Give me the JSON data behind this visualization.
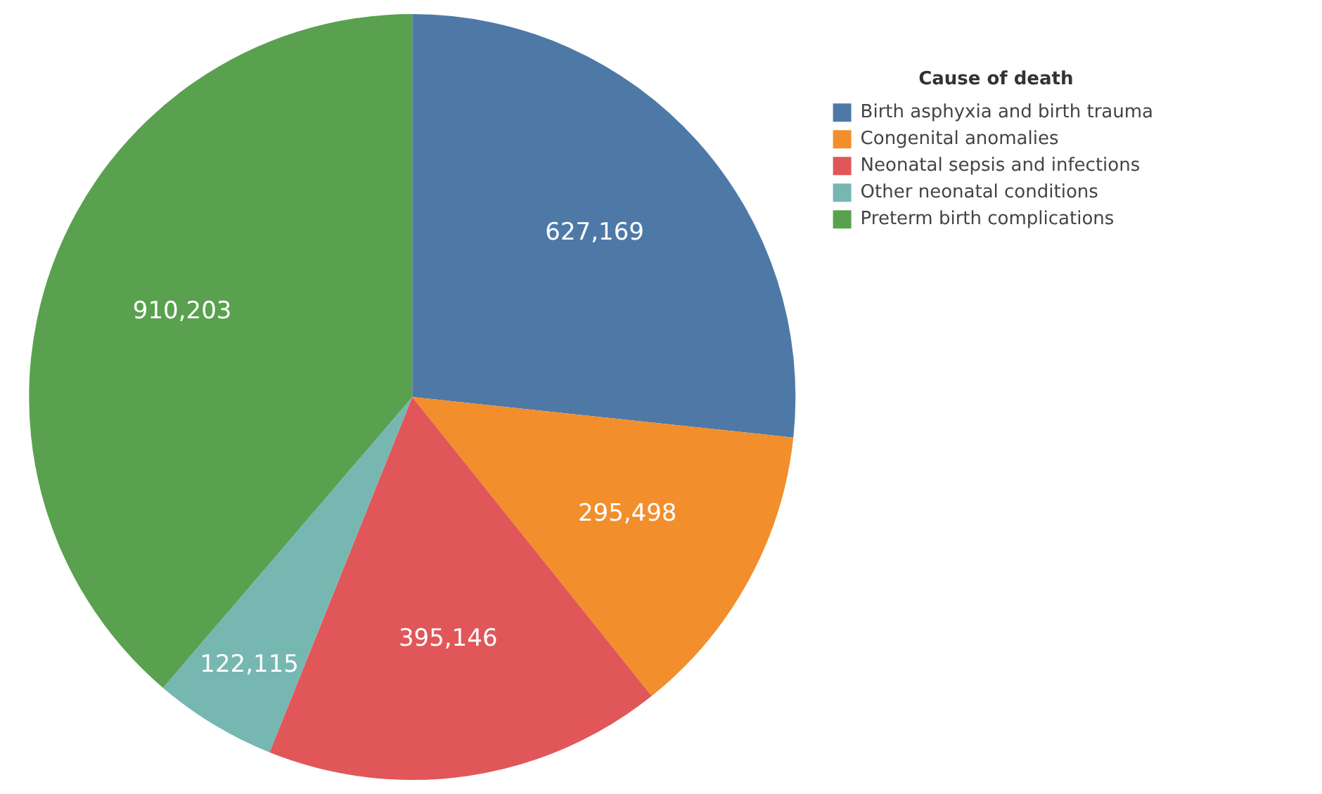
{
  "chart_data": {
    "type": "pie",
    "legend_title": "Cause of death",
    "legend": "top right",
    "value_labels": [
      "627,169",
      "295,498",
      "395,146",
      "122,115",
      "910,203"
    ],
    "categories": [
      "Birth asphyxia and birth trauma",
      "Congenital anomalies",
      "Neonatal sepsis and infections",
      "Other neonatal conditions",
      "Preterm birth complications"
    ],
    "values": [
      627169,
      295498,
      395146,
      122115,
      910203
    ],
    "colors": [
      "#4e79a7",
      "#f28e2b",
      "#e15759",
      "#76b7b2",
      "#59a14f"
    ]
  }
}
